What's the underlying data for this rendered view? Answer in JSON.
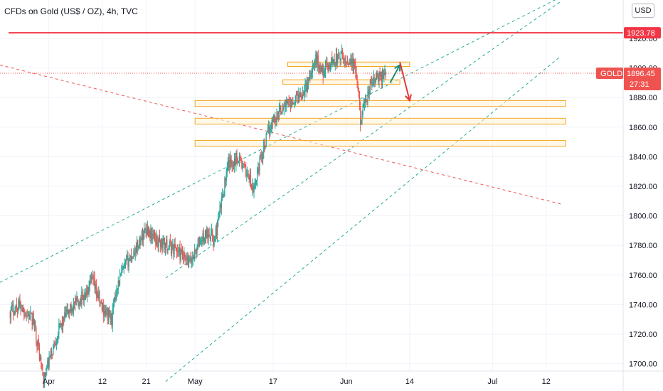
{
  "header": {
    "title": "CFDs on Gold (US$ / OZ), 4h, TVC",
    "currency_button": "USD"
  },
  "price_tags": {
    "resistance_value": "1923.78",
    "symbol": "GOLD",
    "last_value": "1896.45",
    "countdown": "27:31"
  },
  "colors": {
    "up": "#26a69a",
    "down": "#ef5350",
    "resistance": "#f23645",
    "zone_fill": "#fff3d6",
    "zone_border": "#f5a623",
    "channel": "#22ab94",
    "downtrend": "#ef5350",
    "arrow_up": "#1b8a73",
    "arrow_down": "#e53935"
  },
  "chart_data": {
    "type": "candlestick",
    "timeframe": "4h",
    "y_axis": {
      "min": 1695,
      "max": 1945,
      "ticks": [
        1700,
        1720,
        1740,
        1760,
        1780,
        1800,
        1820,
        1840,
        1860,
        1880,
        1900,
        1920
      ]
    },
    "x_axis": {
      "tick_labels": [
        "Apr",
        "12",
        "21",
        "May",
        "17",
        "Jun",
        "14",
        "Jul",
        "12"
      ],
      "tick_dates": [
        "2021-04-01",
        "2021-04-12",
        "2021-04-21",
        "2021-05-01",
        "2021-05-17",
        "2021-06-01",
        "2021-06-14",
        "2021-07-01",
        "2021-07-12"
      ]
    },
    "price_path": [
      [
        "2021-03-24",
        1735
      ],
      [
        "2021-03-26",
        1740
      ],
      [
        "2021-03-29",
        1728
      ],
      [
        "2021-03-30",
        1710
      ],
      [
        "2021-03-31",
        1688
      ],
      [
        "2021-04-01",
        1700
      ],
      [
        "2021-04-03",
        1722
      ],
      [
        "2021-04-05",
        1735
      ],
      [
        "2021-04-07",
        1742
      ],
      [
        "2021-04-09",
        1748
      ],
      [
        "2021-04-10",
        1756
      ],
      [
        "2021-04-12",
        1738
      ],
      [
        "2021-04-14",
        1730
      ],
      [
        "2021-04-15",
        1752
      ],
      [
        "2021-04-17",
        1768
      ],
      [
        "2021-04-19",
        1778
      ],
      [
        "2021-04-21",
        1792
      ],
      [
        "2021-04-23",
        1784
      ],
      [
        "2021-04-25",
        1780
      ],
      [
        "2021-04-27",
        1778
      ],
      [
        "2021-04-29",
        1770
      ],
      [
        "2021-04-30",
        1768
      ],
      [
        "2021-05-02",
        1782
      ],
      [
        "2021-05-04",
        1790
      ],
      [
        "2021-05-05",
        1782
      ],
      [
        "2021-05-06",
        1800
      ],
      [
        "2021-05-07",
        1820
      ],
      [
        "2021-05-08",
        1835
      ],
      [
        "2021-05-10",
        1840
      ],
      [
        "2021-05-11",
        1832
      ],
      [
        "2021-05-12",
        1828
      ],
      [
        "2021-05-13",
        1815
      ],
      [
        "2021-05-14",
        1832
      ],
      [
        "2021-05-15",
        1845
      ],
      [
        "2021-05-17",
        1865
      ],
      [
        "2021-05-18",
        1868
      ],
      [
        "2021-05-19",
        1874
      ],
      [
        "2021-05-20",
        1876
      ],
      [
        "2021-05-22",
        1880
      ],
      [
        "2021-05-24",
        1888
      ],
      [
        "2021-05-25",
        1900
      ],
      [
        "2021-05-26",
        1906
      ],
      [
        "2021-05-27",
        1898
      ],
      [
        "2021-05-28",
        1900
      ],
      [
        "2021-05-29",
        1904
      ],
      [
        "2021-05-31",
        1908
      ],
      [
        "2021-06-01",
        1904
      ],
      [
        "2021-06-02",
        1906
      ],
      [
        "2021-06-03",
        1898
      ],
      [
        "2021-06-04",
        1866
      ],
      [
        "2021-06-05",
        1875
      ],
      [
        "2021-06-06",
        1888
      ],
      [
        "2021-06-07",
        1892
      ],
      [
        "2021-06-08",
        1894
      ],
      [
        "2021-06-09",
        1896.45
      ]
    ],
    "annotations": {
      "resistance_line": 1923.78,
      "last_price": 1896.45,
      "zones": [
        {
          "from": "2021-05-20",
          "to": "2021-06-14",
          "low": 1901,
          "high": 1904
        },
        {
          "from": "2021-05-19",
          "to": "2021-06-12",
          "low": 1889,
          "high": 1892
        },
        {
          "from": "2021-05-01",
          "to": "2021-07-16",
          "low": 1874,
          "high": 1878
        },
        {
          "from": "2021-05-01",
          "to": "2021-07-16",
          "low": 1862,
          "high": 1866
        },
        {
          "from": "2021-05-01",
          "to": "2021-07-16",
          "low": 1847,
          "high": 1851
        }
      ],
      "channel_upper": [
        [
          "2021-03-22",
          1755
        ],
        [
          "2021-07-15",
          1948
        ]
      ],
      "channel_middle": [
        [
          "2021-04-25",
          1758
        ],
        [
          "2021-07-15",
          1945
        ]
      ],
      "channel_lower": [
        [
          "2021-04-25",
          1688
        ],
        [
          "2021-07-15",
          1908
        ]
      ],
      "downtrend_line": [
        [
          "2021-03-22",
          1902
        ],
        [
          "2021-07-15",
          1808
        ]
      ],
      "projection_up": [
        [
          "2021-06-10",
          1890
        ],
        [
          "2021-06-12",
          1902
        ]
      ],
      "projection_down": [
        [
          "2021-06-12",
          1904
        ],
        [
          "2021-06-14",
          1878
        ]
      ]
    }
  }
}
